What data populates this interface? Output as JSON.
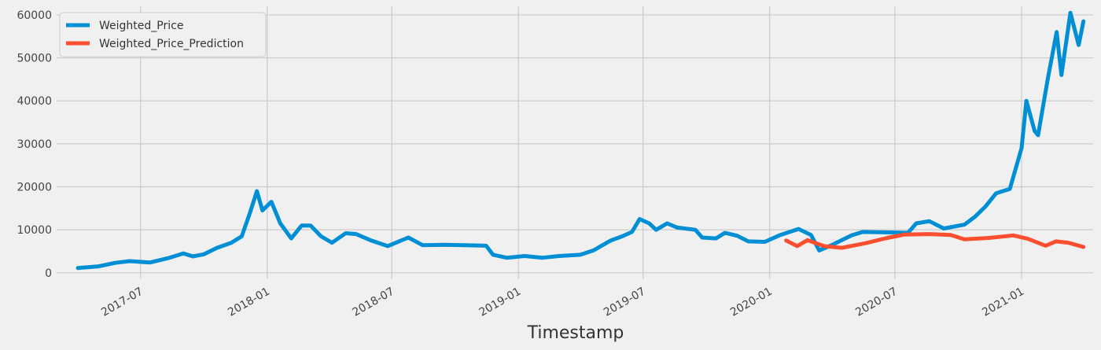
{
  "chart_data": {
    "type": "line",
    "title": "",
    "xlabel": "Timestamp",
    "ylabel": "",
    "grid": true,
    "legend_position": "top-left",
    "background": "#f0f0f0",
    "grid_color": "#cbcbcb",
    "xlim": [
      "2017-03-01",
      "2021-04-15"
    ],
    "ylim": [
      -1500,
      62000
    ],
    "x_ticks": [
      "2017-07",
      "2018-01",
      "2018-07",
      "2019-01",
      "2019-07",
      "2020-01",
      "2020-07",
      "2021-01"
    ],
    "y_ticks": [
      0,
      10000,
      20000,
      30000,
      40000,
      50000,
      60000
    ],
    "series": [
      {
        "name": "Weighted_Price",
        "color": "#008fd5",
        "points": [
          [
            "2017-04-01",
            1100
          ],
          [
            "2017-05-01",
            1500
          ],
          [
            "2017-05-25",
            2300
          ],
          [
            "2017-06-15",
            2700
          ],
          [
            "2017-07-15",
            2400
          ],
          [
            "2017-08-10",
            3400
          ],
          [
            "2017-09-01",
            4500
          ],
          [
            "2017-09-15",
            3800
          ],
          [
            "2017-10-01",
            4300
          ],
          [
            "2017-10-20",
            5800
          ],
          [
            "2017-11-10",
            7000
          ],
          [
            "2017-11-25",
            8500
          ],
          [
            "2017-12-07",
            14000
          ],
          [
            "2017-12-17",
            19000
          ],
          [
            "2017-12-25",
            14500
          ],
          [
            "2018-01-07",
            16500
          ],
          [
            "2018-01-20",
            11500
          ],
          [
            "2018-02-05",
            8000
          ],
          [
            "2018-02-20",
            11000
          ],
          [
            "2018-03-05",
            11000
          ],
          [
            "2018-03-20",
            8500
          ],
          [
            "2018-04-05",
            7000
          ],
          [
            "2018-04-25",
            9200
          ],
          [
            "2018-05-10",
            9000
          ],
          [
            "2018-06-01",
            7500
          ],
          [
            "2018-06-25",
            6200
          ],
          [
            "2018-07-25",
            8200
          ],
          [
            "2018-08-15",
            6400
          ],
          [
            "2018-09-15",
            6500
          ],
          [
            "2018-10-15",
            6400
          ],
          [
            "2018-11-15",
            6300
          ],
          [
            "2018-11-25",
            4200
          ],
          [
            "2018-12-15",
            3500
          ],
          [
            "2019-01-10",
            3900
          ],
          [
            "2019-02-05",
            3500
          ],
          [
            "2019-03-01",
            3900
          ],
          [
            "2019-04-01",
            4200
          ],
          [
            "2019-04-20",
            5200
          ],
          [
            "2019-05-15",
            7500
          ],
          [
            "2019-06-01",
            8500
          ],
          [
            "2019-06-15",
            9500
          ],
          [
            "2019-06-26",
            12500
          ],
          [
            "2019-07-10",
            11500
          ],
          [
            "2019-07-20",
            10000
          ],
          [
            "2019-08-05",
            11500
          ],
          [
            "2019-08-20",
            10500
          ],
          [
            "2019-09-15",
            10000
          ],
          [
            "2019-09-25",
            8200
          ],
          [
            "2019-10-15",
            8000
          ],
          [
            "2019-10-28",
            9300
          ],
          [
            "2019-11-15",
            8600
          ],
          [
            "2019-12-01",
            7300
          ],
          [
            "2019-12-25",
            7200
          ],
          [
            "2020-01-15",
            8700
          ],
          [
            "2020-02-12",
            10200
          ],
          [
            "2020-03-01",
            8800
          ],
          [
            "2020-03-13",
            5200
          ],
          [
            "2020-04-01",
            6500
          ],
          [
            "2020-04-29",
            8700
          ],
          [
            "2020-05-15",
            9500
          ],
          [
            "2020-06-15",
            9400
          ],
          [
            "2020-07-20",
            9300
          ],
          [
            "2020-08-01",
            11500
          ],
          [
            "2020-08-20",
            12000
          ],
          [
            "2020-09-10",
            10300
          ],
          [
            "2020-10-10",
            11200
          ],
          [
            "2020-10-25",
            13000
          ],
          [
            "2020-11-10",
            15500
          ],
          [
            "2020-11-25",
            18500
          ],
          [
            "2020-12-15",
            19500
          ],
          [
            "2021-01-01",
            29000
          ],
          [
            "2021-01-08",
            40000
          ],
          [
            "2021-01-20",
            33000
          ],
          [
            "2021-01-25",
            32000
          ],
          [
            "2021-02-08",
            45000
          ],
          [
            "2021-02-21",
            56000
          ],
          [
            "2021-02-28",
            46000
          ],
          [
            "2021-03-13",
            60500
          ],
          [
            "2021-03-25",
            53000
          ],
          [
            "2021-04-01",
            58500
          ]
        ]
      },
      {
        "name": "Weighted_Price_Prediction",
        "color": "#fc4f30",
        "points": [
          [
            "2020-01-25",
            7500
          ],
          [
            "2020-02-10",
            6200
          ],
          [
            "2020-02-25",
            7600
          ],
          [
            "2020-03-20",
            6200
          ],
          [
            "2020-04-15",
            5800
          ],
          [
            "2020-05-20",
            6900
          ],
          [
            "2020-06-20",
            8100
          ],
          [
            "2020-07-15",
            8900
          ],
          [
            "2020-08-20",
            9000
          ],
          [
            "2020-09-20",
            8800
          ],
          [
            "2020-10-10",
            7800
          ],
          [
            "2020-11-15",
            8100
          ],
          [
            "2020-12-20",
            8700
          ],
          [
            "2021-01-10",
            7900
          ],
          [
            "2021-02-05",
            6300
          ],
          [
            "2021-02-20",
            7300
          ],
          [
            "2021-03-10",
            7000
          ],
          [
            "2021-04-01",
            6000
          ]
        ]
      }
    ]
  }
}
